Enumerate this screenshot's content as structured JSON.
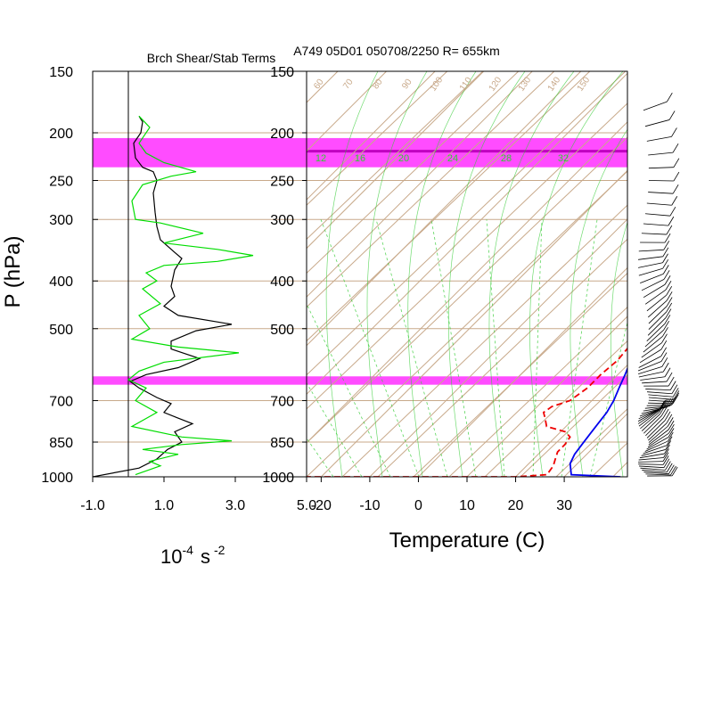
{
  "header": {
    "title": "A749 05D01 050708/2250 R= 655km",
    "left_title": "Brch Shear/Stab Terms"
  },
  "axes": {
    "pressure_label": "P (hPa)",
    "left_xlabel_base": "10",
    "left_xlabel_exp": "-4",
    "left_xlabel_unit": "s",
    "left_xlabel_unit_exp": "-2",
    "temp_xlabel": "Temperature (C)"
  },
  "colors": {
    "temperature": "#0000ee",
    "dewpoint": "#ee0000",
    "shear": "#000000",
    "stability": "#00dd00",
    "highlight": "#ff00ff",
    "skew_lines": "#c8a98a",
    "mixing_ratio": "#33cc33"
  },
  "chart_data": [
    {
      "type": "line",
      "name": "brch-shear-stab-panel",
      "title": "Brch Shear/Stab Terms",
      "y_scale": "log-pressure",
      "ylim": [
        1000,
        150
      ],
      "xlim": [
        -1.0,
        5.0
      ],
      "x_ticks": [
        "-1.0",
        "1.0",
        "3.0",
        "5.0"
      ],
      "y_ticks": [
        150,
        200,
        250,
        300,
        400,
        500,
        700,
        850,
        1000
      ],
      "highlight_bands_hPa": [
        [
          205,
          235
        ],
        [
          625,
          650
        ]
      ],
      "series": [
        {
          "color": "black",
          "points": [
            [
              0.3,
              185
            ],
            [
              0.4,
              190
            ],
            [
              0.35,
              200
            ],
            [
              0.15,
              210
            ],
            [
              0.2,
              225
            ],
            [
              0.4,
              235
            ],
            [
              0.7,
              240
            ],
            [
              0.8,
              250
            ],
            [
              0.7,
              265
            ],
            [
              0.75,
              290
            ],
            [
              0.8,
              310
            ],
            [
              0.9,
              330
            ],
            [
              1.3,
              350
            ],
            [
              1.5,
              360
            ],
            [
              1.3,
              380
            ],
            [
              1.2,
              410
            ],
            [
              1.3,
              430
            ],
            [
              1.0,
              450
            ],
            [
              1.4,
              470
            ],
            [
              2.9,
              490
            ],
            [
              1.9,
              505
            ],
            [
              1.2,
              530
            ],
            [
              1.2,
              550
            ],
            [
              2.0,
              575
            ],
            [
              1.4,
              600
            ],
            [
              0.5,
              620
            ],
            [
              0.05,
              640
            ],
            [
              0.3,
              660
            ],
            [
              0.8,
              690
            ],
            [
              1.2,
              710
            ],
            [
              1.0,
              740
            ],
            [
              1.4,
              760
            ],
            [
              1.8,
              780
            ],
            [
              1.3,
              810
            ],
            [
              1.5,
              850
            ],
            [
              1.1,
              880
            ],
            [
              0.8,
              920
            ],
            [
              0.3,
              960
            ],
            [
              -1.0,
              1000
            ]
          ]
        },
        {
          "color": "green",
          "points": [
            [
              0.3,
              185
            ],
            [
              0.6,
              195
            ],
            [
              0.3,
              210
            ],
            [
              0.5,
              220
            ],
            [
              1.0,
              230
            ],
            [
              1.9,
              240
            ],
            [
              1.2,
              245
            ],
            [
              0.4,
              255
            ],
            [
              0.1,
              275
            ],
            [
              0.2,
              300
            ],
            [
              0.9,
              305
            ],
            [
              2.1,
              320
            ],
            [
              1.0,
              335
            ],
            [
              2.5,
              345
            ],
            [
              3.5,
              355
            ],
            [
              2.5,
              365
            ],
            [
              1.0,
              372
            ],
            [
              0.5,
              385
            ],
            [
              0.8,
              400
            ],
            [
              0.4,
              415
            ],
            [
              0.9,
              445
            ],
            [
              0.3,
              470
            ],
            [
              0.6,
              500
            ],
            [
              0.1,
              525
            ],
            [
              1.4,
              545
            ],
            [
              3.1,
              560
            ],
            [
              1.0,
              585
            ],
            [
              0.3,
              610
            ],
            [
              0.0,
              635
            ],
            [
              0.5,
              660
            ],
            [
              0.2,
              700
            ],
            [
              0.8,
              740
            ],
            [
              0.1,
              790
            ],
            [
              1.5,
              830
            ],
            [
              2.9,
              845
            ],
            [
              1.5,
              860
            ],
            [
              0.4,
              880
            ],
            [
              1.4,
              900
            ],
            [
              0.6,
              930
            ],
            [
              0.9,
              950
            ],
            [
              0.2,
              990
            ]
          ]
        }
      ]
    },
    {
      "type": "line",
      "name": "skew-t-diagram",
      "xlabel": "Temperature (C)",
      "ylabel": "P (hPa)",
      "y_scale": "log-pressure",
      "ylim": [
        1000,
        150
      ],
      "xlim": [
        -23,
        43
      ],
      "x_ticks": [
        "-20",
        "-10",
        "0",
        "10",
        "20",
        "30"
      ],
      "y_ticks": [
        150,
        200,
        250,
        300,
        400,
        500,
        700,
        850,
        1000
      ],
      "highlight_bands_hPa": [
        [
          205,
          235
        ],
        [
          625,
          650
        ]
      ],
      "highlight_lines_hPa": [
        218
      ],
      "mixing_ratio_labels": [
        "12",
        "16",
        "20",
        "24",
        "28",
        "32"
      ],
      "isotherm_labels": [
        "60",
        "70",
        "80",
        "90",
        "100",
        "110",
        "120",
        "130",
        "140",
        "150"
      ],
      "series": [
        {
          "name": "temperature",
          "points": [
            [
              -2.5,
              180
            ],
            [
              1,
              195
            ],
            [
              3.5,
              210
            ],
            [
              5.5,
              225
            ],
            [
              6.5,
              240
            ],
            [
              8.5,
              260
            ],
            [
              10,
              280
            ],
            [
              11.5,
              300
            ],
            [
              13,
              325
            ],
            [
              14,
              345
            ],
            [
              14.5,
              365
            ],
            [
              15,
              385
            ],
            [
              16,
              405
            ],
            [
              17,
              430
            ],
            [
              17.5,
              450
            ],
            [
              18,
              470
            ],
            [
              18,
              490
            ],
            [
              18.5,
              510
            ],
            [
              19,
              540
            ],
            [
              19.5,
              575
            ],
            [
              21.5,
              620
            ],
            [
              23,
              660
            ],
            [
              24.5,
              700
            ],
            [
              25.5,
              740
            ],
            [
              26,
              780
            ],
            [
              26.5,
              820
            ],
            [
              27,
              860
            ],
            [
              27.5,
              900
            ],
            [
              28.5,
              940
            ],
            [
              31,
              990
            ],
            [
              42,
              1010
            ]
          ]
        },
        {
          "name": "dewpoint",
          "points": [
            [
              -6,
              200
            ],
            [
              -3.5,
              210
            ],
            [
              -1,
              220
            ],
            [
              1,
              240
            ],
            [
              2.5,
              260
            ],
            [
              4,
              280
            ],
            [
              6,
              300
            ],
            [
              7.5,
              325
            ],
            [
              9,
              345
            ],
            [
              10,
              360
            ],
            [
              11,
              380
            ],
            [
              12.5,
              410
            ],
            [
              13.5,
              440
            ],
            [
              14.5,
              460
            ],
            [
              13.5,
              480
            ],
            [
              15,
              510
            ],
            [
              16.5,
              540
            ],
            [
              17,
              580
            ],
            [
              16.5,
              620
            ],
            [
              16.5,
              660
            ],
            [
              15.5,
              700
            ],
            [
              13,
              720
            ],
            [
              12.5,
              740
            ],
            [
              14,
              760
            ],
            [
              16,
              790
            ],
            [
              21,
              810
            ],
            [
              23,
              830
            ],
            [
              23.5,
              860
            ],
            [
              23.5,
              890
            ],
            [
              24.5,
              920
            ],
            [
              25.5,
              950
            ],
            [
              26,
              990
            ],
            [
              20,
              1000
            ],
            [
              -23,
              1010
            ]
          ]
        }
      ]
    }
  ]
}
